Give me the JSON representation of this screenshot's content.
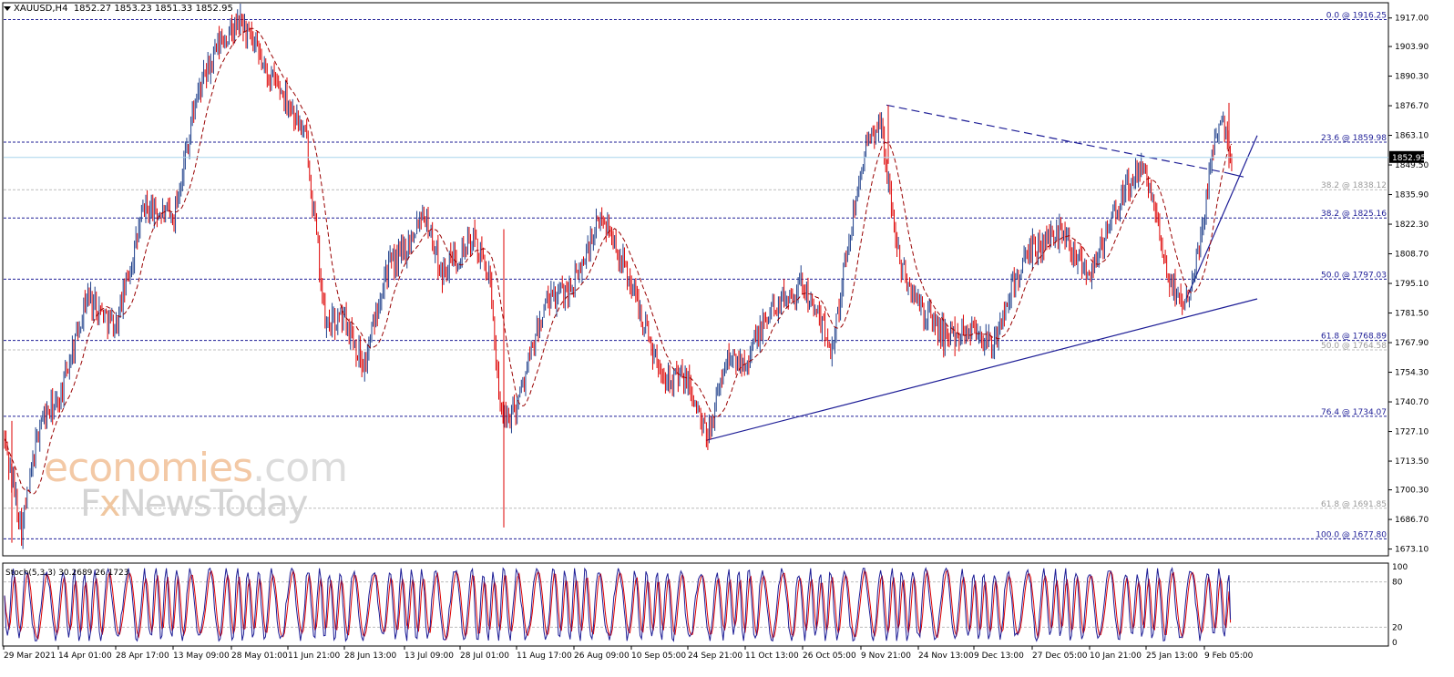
{
  "symbol_header": {
    "symbol": "XAUUSD,H4",
    "open": "1852.27",
    "high": "1853.23",
    "low": "1851.33",
    "close": "1852.95"
  },
  "watermark": {
    "line1_main": "economies",
    "line1_suffix": ".com",
    "line2_prefix": "F",
    "line2_x": "x",
    "line2_rest": "NewsToday"
  },
  "colors": {
    "up_candle": "#1e3f8a",
    "down_candle": "#dd0000",
    "moving_average": "#990000",
    "fib_line": "#1d1d96",
    "trendline": "#1d1d96",
    "stoch_main": "#1d1d96",
    "stoch_signal": "#dd0000",
    "price_line": "#a8d4ec",
    "current_price_bg": "#000000"
  },
  "chart_data": {
    "type": "candlestick",
    "timeframe": "H4",
    "ylim": [
      1670,
      1924
    ],
    "y_ticks": [
      "1917.00",
      "1903.90",
      "1890.30",
      "1876.70",
      "1863.10",
      "1849.50",
      "1835.90",
      "1822.30",
      "1808.70",
      "1795.10",
      "1781.50",
      "1767.90",
      "1754.30",
      "1740.70",
      "1727.10",
      "1713.50",
      "1700.30",
      "1686.70",
      "1673.10"
    ],
    "x_ticks": [
      "29 Mar 2021",
      "14 Apr 01:00",
      "28 Apr 17:00",
      "13 May 09:00",
      "28 May 01:00",
      "11 Jun 21:00",
      "28 Jun 13:00",
      "13 Jul 09:00",
      "28 Jul 01:00",
      "11 Aug 17:00",
      "26 Aug 09:00",
      "10 Sep 05:00",
      "24 Sep 21:00",
      "11 Oct 13:00",
      "26 Oct 05:00",
      "9 Nov 21:00",
      "24 Nov 13:00",
      "9 Dec 13:00",
      "27 Dec 05:00",
      "10 Jan 21:00",
      "25 Jan 13:00",
      "9 Feb 05:00"
    ],
    "current_price": "1852.95",
    "close_price_path": [
      {
        "x": "29 Mar 2021",
        "y": 1725
      },
      {
        "x": "2 Apr",
        "y": 1682
      },
      {
        "x": "10 Apr",
        "y": 1732
      },
      {
        "x": "14 Apr 01:00",
        "y": 1740
      },
      {
        "x": "22 Apr",
        "y": 1790
      },
      {
        "x": "28 Apr 17:00",
        "y": 1775
      },
      {
        "x": "7 May",
        "y": 1830
      },
      {
        "x": "13 May 09:00",
        "y": 1825
      },
      {
        "x": "19 May",
        "y": 1880
      },
      {
        "x": "25 May",
        "y": 1905
      },
      {
        "x": "1 Jun",
        "y": 1915
      },
      {
        "x": "8 Jun",
        "y": 1893
      },
      {
        "x": "11 Jun 21:00",
        "y": 1880
      },
      {
        "x": "16 Jun",
        "y": 1860
      },
      {
        "x": "18 Jun",
        "y": 1775
      },
      {
        "x": "28 Jun 13:00",
        "y": 1780
      },
      {
        "x": "2 Jul",
        "y": 1757
      },
      {
        "x": "8 Jul",
        "y": 1800
      },
      {
        "x": "13 Jul 09:00",
        "y": 1810
      },
      {
        "x": "16 Jul",
        "y": 1830
      },
      {
        "x": "22 Jul",
        "y": 1800
      },
      {
        "x": "28 Jul 01:00",
        "y": 1810
      },
      {
        "x": "2 Aug",
        "y": 1815
      },
      {
        "x": "6 Aug",
        "y": 1800
      },
      {
        "x": "9 Aug",
        "y": 1730
      },
      {
        "x": "11 Aug 17:00",
        "y": 1740
      },
      {
        "x": "17 Aug",
        "y": 1785
      },
      {
        "x": "26 Aug 09:00",
        "y": 1795
      },
      {
        "x": "3 Sep",
        "y": 1827
      },
      {
        "x": "10 Sep 05:00",
        "y": 1795
      },
      {
        "x": "16 Sep",
        "y": 1755
      },
      {
        "x": "24 Sep 21:00",
        "y": 1750
      },
      {
        "x": "29 Sep",
        "y": 1723
      },
      {
        "x": "5 Oct",
        "y": 1760
      },
      {
        "x": "11 Oct 13:00",
        "y": 1760
      },
      {
        "x": "20 Oct",
        "y": 1785
      },
      {
        "x": "26 Oct 05:00",
        "y": 1795
      },
      {
        "x": "3 Nov",
        "y": 1765
      },
      {
        "x": "9 Nov 21:00",
        "y": 1850
      },
      {
        "x": "16 Nov",
        "y": 1870
      },
      {
        "x": "22 Nov",
        "y": 1805
      },
      {
        "x": "24 Nov 13:00",
        "y": 1785
      },
      {
        "x": "3 Dec",
        "y": 1770
      },
      {
        "x": "9 Dec 13:00",
        "y": 1775
      },
      {
        "x": "15 Dec",
        "y": 1765
      },
      {
        "x": "20 Dec",
        "y": 1795
      },
      {
        "x": "27 Dec 05:00",
        "y": 1810
      },
      {
        "x": "3 Jan",
        "y": 1820
      },
      {
        "x": "10 Jan 21:00",
        "y": 1800
      },
      {
        "x": "18 Jan",
        "y": 1820
      },
      {
        "x": "21 Jan",
        "y": 1840
      },
      {
        "x": "25 Jan 13:00",
        "y": 1848
      },
      {
        "x": "28 Jan",
        "y": 1800
      },
      {
        "x": "1 Feb",
        "y": 1785
      },
      {
        "x": "9 Feb 05:00",
        "y": 1825
      },
      {
        "x": "11 Feb",
        "y": 1862
      },
      {
        "x": "14 Feb",
        "y": 1872
      },
      {
        "x": "17 Feb",
        "y": 1852.95
      }
    ],
    "fibonacci_levels": [
      {
        "label": "0.0 @ 1916.25",
        "value": 1916.25,
        "style": "dark"
      },
      {
        "label": "23.6 @ 1859.98",
        "value": 1859.98,
        "style": "dark"
      },
      {
        "label": "38.2 @ 1838.12",
        "value": 1838.12,
        "style": "light"
      },
      {
        "label": "38.2 @ 1825.16",
        "value": 1825.16,
        "style": "dark"
      },
      {
        "label": "50.0 @ 1797.03",
        "value": 1797.03,
        "style": "dark"
      },
      {
        "label": "61.8 @ 1768.89",
        "value": 1768.89,
        "style": "dark"
      },
      {
        "label": "50.0 @ 1764.58",
        "value": 1764.58,
        "style": "light"
      },
      {
        "label": "76.4 @ 1734.07",
        "value": 1734.07,
        "style": "dark"
      },
      {
        "label": "61.8 @ 1691.85",
        "value": 1691.85,
        "style": "light"
      },
      {
        "label": "100.0 @ 1677.80",
        "value": 1677.8,
        "style": "dark"
      }
    ],
    "trendlines": [
      {
        "name": "rising-support",
        "from": {
          "x": "29 Sep",
          "y": 1723
        },
        "to": {
          "x": "end",
          "y": 1788
        },
        "style": "solid"
      },
      {
        "name": "falling-resistance",
        "from": {
          "x": "16 Nov",
          "y": 1877
        },
        "to": {
          "x": "16 Feb",
          "y": 1846
        },
        "style": "dashed"
      },
      {
        "name": "steep-rising-support",
        "from": {
          "x": "1 Feb",
          "y": 1788
        },
        "to": {
          "x": "end",
          "y": 1863
        },
        "style": "solid"
      }
    ],
    "stochastic": {
      "label": "Stoch(5,3,3) 30.2689 26.1723",
      "main": 30.2689,
      "signal": 26.1723,
      "ylim": [
        0,
        100
      ],
      "levels": [
        20,
        80
      ],
      "y_ticks": [
        "100",
        "80",
        "20",
        "0"
      ]
    }
  }
}
